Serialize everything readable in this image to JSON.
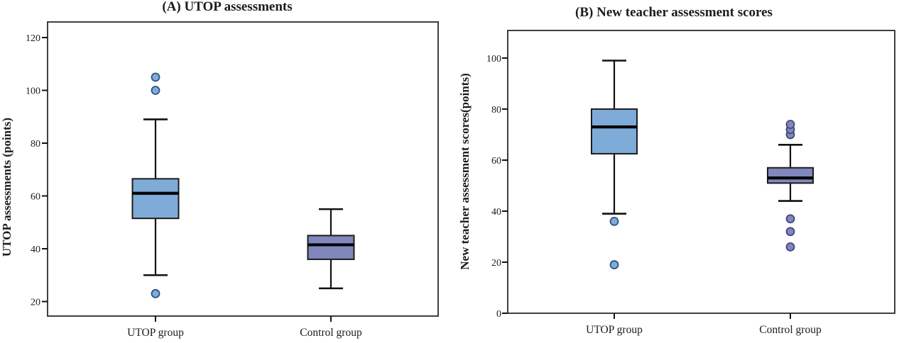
{
  "figure": {
    "background": "#ffffff",
    "frame_color": "#3f3f3f",
    "line_color": "#111111",
    "text_color": "#1c1c1c"
  },
  "chart_data": [
    {
      "type": "box",
      "title": "(A) UTOP assessments",
      "ylabel": "UTOP assessments (points)",
      "xlabel": "",
      "grid": false,
      "legend": "none",
      "categories": [
        "UTOP group",
        "Control group"
      ],
      "yticks": [
        120,
        100,
        80,
        60,
        40,
        20
      ],
      "ylim": [
        14.5,
        125.9
      ],
      "series": [
        {
          "name": "UTOP group",
          "whisker_low": 30,
          "q1": 51.5,
          "median": 61,
          "q3": 66.5,
          "whisker_high": 89,
          "outliers_low": [
            23
          ],
          "outliers_high": [
            100,
            105
          ],
          "box_color": "#7fabd9",
          "outlier_stroke": "#2f5480"
        },
        {
          "name": "Control group",
          "whisker_low": 25,
          "q1": 36,
          "median": 41.5,
          "q3": 45,
          "whisker_high": 55,
          "outliers_low": [],
          "outliers_high": [],
          "box_color": "#8186bb",
          "outlier_stroke": "#42477c"
        }
      ]
    },
    {
      "type": "box",
      "title": "(B) New teacher assessment scores",
      "ylabel": "New teacher assessment scores(points)",
      "xlabel": "",
      "grid": false,
      "legend": "none",
      "categories": [
        "UTOP group",
        "Control group"
      ],
      "yticks": [
        100,
        80,
        60,
        40,
        20,
        0
      ],
      "ylim": [
        0,
        110.8
      ],
      "series": [
        {
          "name": "UTOP group",
          "whisker_low": 39,
          "q1": 62.5,
          "median": 73,
          "q3": 80,
          "whisker_high": 99,
          "outliers_low": [
            19,
            36
          ],
          "outliers_high": [],
          "box_color": "#7fabd9",
          "outlier_stroke": "#2f5480"
        },
        {
          "name": "Control group",
          "whisker_low": 44,
          "q1": 51,
          "median": 53,
          "q3": 57,
          "whisker_high": 66,
          "outliers_low": [
            26,
            32,
            37
          ],
          "outliers_high": [
            70,
            72,
            74
          ],
          "box_color": "#8186bb",
          "outlier_stroke": "#42477c"
        }
      ]
    }
  ]
}
